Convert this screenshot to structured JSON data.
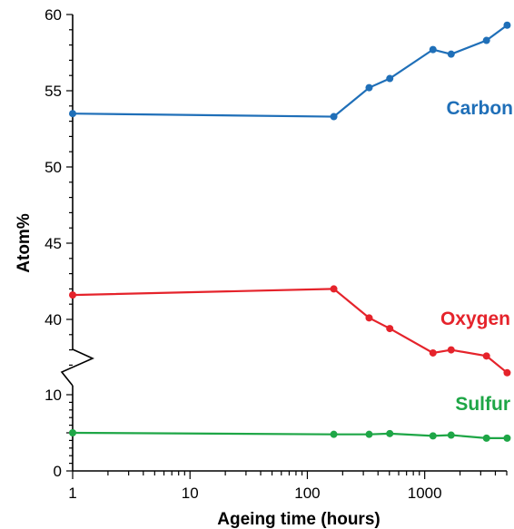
{
  "chart_data": {
    "type": "line",
    "xlabel": "Ageing time (hours)",
    "ylabel": "Atom%",
    "x_scale": "log",
    "xlim": [
      1,
      5000
    ],
    "x_ticks": [
      {
        "value": 1,
        "label": "1"
      },
      {
        "value": 10,
        "label": "10"
      },
      {
        "value": 100,
        "label": "100"
      },
      {
        "value": 1000,
        "label": "1000"
      }
    ],
    "y_axis_break": "between 10 and 40",
    "upper_ylim": [
      37,
      60
    ],
    "lower_ylim": [
      0,
      10
    ],
    "upper_ticks": [
      {
        "value": 60,
        "label": "60"
      },
      {
        "value": 55,
        "label": "55"
      },
      {
        "value": 50,
        "label": "50"
      },
      {
        "value": 45,
        "label": "45"
      },
      {
        "value": 40,
        "label": "40"
      }
    ],
    "lower_ticks": [
      {
        "value": 10,
        "label": "10"
      },
      {
        "value": 5,
        "label": ""
      },
      {
        "value": 0,
        "label": "0"
      }
    ],
    "grid": false,
    "series": [
      {
        "name": "Carbon",
        "color": "#1f6fb8",
        "segment": "upper",
        "x": [
          1,
          168,
          336,
          504,
          1176,
          1680,
          3360,
          5040
        ],
        "y": [
          53.5,
          53.3,
          55.2,
          55.8,
          57.7,
          57.4,
          58.3,
          59.3
        ]
      },
      {
        "name": "Oxygen",
        "color": "#e5232b",
        "segment": "upper",
        "x": [
          1,
          168,
          336,
          504,
          1176,
          1680,
          3360,
          5040
        ],
        "y": [
          41.6,
          42.0,
          40.1,
          39.4,
          37.8,
          38.0,
          37.6,
          36.5
        ]
      },
      {
        "name": "Sulfur",
        "color": "#1ea646",
        "segment": "lower",
        "x": [
          1,
          168,
          336,
          504,
          1176,
          1680,
          3360,
          5040
        ],
        "y": [
          5.0,
          4.8,
          4.8,
          4.9,
          4.6,
          4.7,
          4.3,
          4.3
        ]
      }
    ]
  }
}
